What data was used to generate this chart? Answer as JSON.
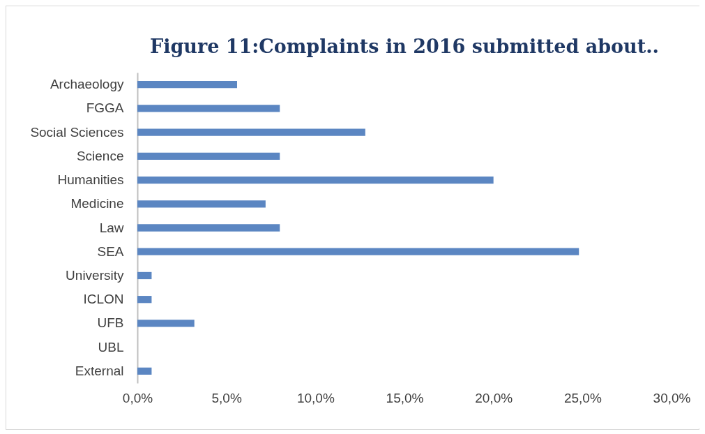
{
  "chart_data": {
    "type": "bar",
    "orientation": "horizontal",
    "title": "Figure 11:Complaints in 2016 submitted about..",
    "categories": [
      "Archaeology",
      "FGGA",
      "Social Sciences",
      "Science",
      "Humanities",
      "Medicine",
      "Law",
      "SEA",
      "University",
      "ICLON",
      "UFB",
      "UBL",
      "External"
    ],
    "values": [
      5.6,
      8.0,
      12.8,
      8.0,
      20.0,
      7.2,
      8.0,
      24.8,
      0.8,
      0.8,
      3.2,
      0,
      0.8
    ],
    "color": "#5b86c2",
    "xlim": [
      0,
      30
    ],
    "xticks": [
      {
        "value": 0,
        "label": "0,0%"
      },
      {
        "value": 5,
        "label": "5,0%"
      },
      {
        "value": 10,
        "label": "10,0%"
      },
      {
        "value": 15,
        "label": "15,0%"
      },
      {
        "value": 20,
        "label": "20,0%"
      },
      {
        "value": 25,
        "label": "25,0%"
      },
      {
        "value": 30,
        "label": "30,0%"
      }
    ],
    "grid": false
  }
}
